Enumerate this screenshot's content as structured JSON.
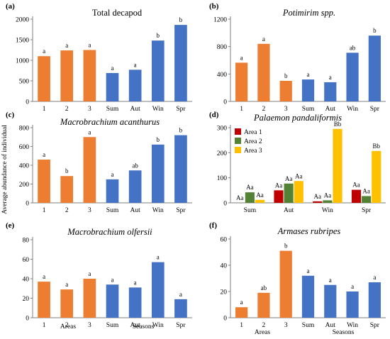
{
  "figure": {
    "y_axis_label": "Average abundance of individual",
    "x_group_labels": {
      "areas": "Areas",
      "seasons": "Seasons"
    }
  },
  "colors": {
    "areas": "#ED7D31",
    "seasons": "#4472C4",
    "area1": "#C00000",
    "area2": "#548235",
    "area3": "#FFC000"
  },
  "chart_data": [
    {
      "panel": "(a)",
      "title": "Total decapod",
      "italic": false,
      "type": "bar",
      "categories": [
        "1",
        "2",
        "3",
        "Sum",
        "Aut",
        "Win",
        "Spr"
      ],
      "groups": [
        "areas",
        "areas",
        "areas",
        "seasons",
        "seasons",
        "seasons",
        "seasons"
      ],
      "values": [
        1100,
        1240,
        1250,
        690,
        770,
        1480,
        1860
      ],
      "labels": [
        "a",
        "a",
        "a",
        "a",
        "a",
        "b",
        "b"
      ],
      "ylim": [
        0,
        2000
      ],
      "yticks": [
        0,
        500,
        1000,
        1500,
        2000
      ]
    },
    {
      "panel": "(b)",
      "title": "Potimirim spp.",
      "italic": true,
      "type": "bar",
      "categories": [
        "1",
        "2",
        "3",
        "Sum",
        "Aut",
        "Win",
        "Spr"
      ],
      "groups": [
        "areas",
        "areas",
        "areas",
        "seasons",
        "seasons",
        "seasons",
        "seasons"
      ],
      "values": [
        565,
        840,
        300,
        320,
        280,
        710,
        960
      ],
      "labels": [
        "a",
        "a",
        "b",
        "a",
        "a",
        "ab",
        "b"
      ],
      "ylim": [
        0,
        1200
      ],
      "yticks": [
        0,
        400,
        800,
        1200
      ]
    },
    {
      "panel": "(c)",
      "title": "Macrobrachium acanthurus",
      "italic": true,
      "type": "bar",
      "categories": [
        "1",
        "2",
        "3",
        "Sum",
        "Aut",
        "Win",
        "Spr"
      ],
      "groups": [
        "areas",
        "areas",
        "areas",
        "seasons",
        "seasons",
        "seasons",
        "seasons"
      ],
      "values": [
        460,
        285,
        700,
        250,
        345,
        620,
        720
      ],
      "labels": [
        "a",
        "b",
        "a",
        "a",
        "ab",
        "b",
        "b"
      ],
      "ylim": [
        0,
        800
      ],
      "yticks": [
        0,
        200,
        400,
        600,
        800
      ]
    },
    {
      "panel": "(d)",
      "title": "Palaemon pandaliformis",
      "italic": true,
      "type": "bar",
      "categories": [
        "Sum",
        "Aut",
        "Win",
        "Spr"
      ],
      "series": [
        {
          "name": "Area 1",
          "values": [
            0,
            50,
            6,
            52
          ],
          "labels": [
            "Aa",
            "Aa",
            "Aa",
            "Aa"
          ]
        },
        {
          "name": "Area 2",
          "values": [
            42,
            77,
            10,
            27
          ],
          "labels": [
            "Aa",
            "Aa",
            "Aa",
            "Aa"
          ]
        },
        {
          "name": "Area 3",
          "values": [
            12,
            87,
            295,
            207
          ],
          "labels": [
            "Aa",
            "Aa",
            "Bb",
            "Bb"
          ]
        }
      ],
      "ylim": [
        0,
        300
      ],
      "yticks": [
        0,
        100,
        200,
        300
      ],
      "legend": "top-left"
    },
    {
      "panel": "(e)",
      "title": "Macrobrachium olfersii",
      "italic": true,
      "type": "bar",
      "categories": [
        "1",
        "2",
        "3",
        "Sum",
        "Aut",
        "Win",
        "Spr"
      ],
      "groups": [
        "areas",
        "areas",
        "areas",
        "seasons",
        "seasons",
        "seasons",
        "seasons"
      ],
      "values": [
        37,
        29,
        40,
        34,
        31,
        57,
        19
      ],
      "labels": [
        "a",
        "a",
        "a",
        "a",
        "a",
        "a",
        "a"
      ],
      "ylim": [
        0,
        80
      ],
      "yticks": [
        0,
        20,
        40,
        60,
        80
      ]
    },
    {
      "panel": "(f)",
      "title": "Armases rubripes",
      "italic": true,
      "type": "bar",
      "categories": [
        "1",
        "2",
        "3",
        "Sum",
        "Aut",
        "Win",
        "Spr"
      ],
      "groups": [
        "areas",
        "areas",
        "areas",
        "seasons",
        "seasons",
        "seasons",
        "seasons"
      ],
      "values": [
        8,
        19,
        51,
        32,
        25,
        20,
        27
      ],
      "labels": [
        "a",
        "ab",
        "b",
        "a",
        "a",
        "a",
        "a"
      ],
      "ylim": [
        0,
        60
      ],
      "yticks": [
        0,
        20,
        40,
        60
      ]
    }
  ]
}
